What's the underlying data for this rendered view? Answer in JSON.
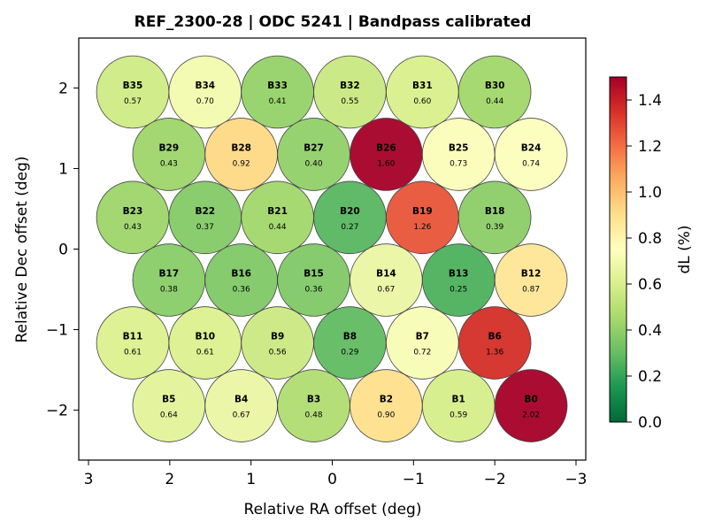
{
  "chart_data": {
    "type": "scatter",
    "subtype": "beam-footprint",
    "title": "REF_2300-28  |  ODC 5241  |  Bandpass calibrated",
    "xlabel": "Relative RA offset (deg)",
    "ylabel": "Relative Dec offset (deg)",
    "xlim": [
      3.12,
      -3.12
    ],
    "ylim": [
      -2.62,
      2.62
    ],
    "x_inverted": true,
    "xticks": [
      3,
      2,
      1,
      0,
      -1,
      -2,
      -3
    ],
    "xtick_labels": [
      "3",
      "2",
      "1",
      "0",
      "−1",
      "−2",
      "−3"
    ],
    "yticks": [
      2,
      1,
      0,
      -1,
      -2
    ],
    "ytick_labels": [
      "2",
      "1",
      "0",
      "−1",
      "−2"
    ],
    "beam_radius_deg": 0.445,
    "colorbar": {
      "label": "dL  (%)",
      "colormap": "RdYlGn_r",
      "vmin": 0.0,
      "vmax": 1.5,
      "ticks": [
        0.0,
        0.2,
        0.4,
        0.6,
        0.8,
        1.0,
        1.2,
        1.4
      ],
      "tick_labels": [
        "0.0",
        "0.2",
        "0.4",
        "0.6",
        "0.8",
        "1.0",
        "1.2",
        "1.4"
      ]
    },
    "beams": [
      {
        "name": "B35",
        "value": "0.57",
        "ra": 2.456,
        "dec": 1.95
      },
      {
        "name": "B34",
        "value": "0.70",
        "ra": 1.565,
        "dec": 1.95
      },
      {
        "name": "B33",
        "value": "0.41",
        "ra": 0.674,
        "dec": 1.95
      },
      {
        "name": "B32",
        "value": "0.55",
        "ra": -0.217,
        "dec": 1.95
      },
      {
        "name": "B31",
        "value": "0.60",
        "ra": -1.109,
        "dec": 1.95
      },
      {
        "name": "B30",
        "value": "0.44",
        "ra": -2.0,
        "dec": 1.95
      },
      {
        "name": "B29",
        "value": "0.43",
        "ra": 2.011,
        "dec": 1.176
      },
      {
        "name": "B28",
        "value": "0.92",
        "ra": 1.12,
        "dec": 1.176
      },
      {
        "name": "B27",
        "value": "0.40",
        "ra": 0.228,
        "dec": 1.176
      },
      {
        "name": "B26",
        "value": "1.60",
        "ra": -0.663,
        "dec": 1.176
      },
      {
        "name": "B25",
        "value": "0.73",
        "ra": -1.554,
        "dec": 1.176
      },
      {
        "name": "B24",
        "value": "0.74",
        "ra": -2.446,
        "dec": 1.176
      },
      {
        "name": "B23",
        "value": "0.43",
        "ra": 2.456,
        "dec": 0.392
      },
      {
        "name": "B22",
        "value": "0.37",
        "ra": 1.565,
        "dec": 0.392
      },
      {
        "name": "B21",
        "value": "0.44",
        "ra": 0.674,
        "dec": 0.392
      },
      {
        "name": "B20",
        "value": "0.27",
        "ra": -0.217,
        "dec": 0.392
      },
      {
        "name": "B19",
        "value": "1.26",
        "ra": -1.109,
        "dec": 0.392
      },
      {
        "name": "B18",
        "value": "0.39",
        "ra": -2.0,
        "dec": 0.392
      },
      {
        "name": "B17",
        "value": "0.38",
        "ra": 2.011,
        "dec": -0.385
      },
      {
        "name": "B16",
        "value": "0.36",
        "ra": 1.12,
        "dec": -0.385
      },
      {
        "name": "B15",
        "value": "0.36",
        "ra": 0.228,
        "dec": -0.385
      },
      {
        "name": "B14",
        "value": "0.67",
        "ra": -0.663,
        "dec": -0.385
      },
      {
        "name": "B13",
        "value": "0.25",
        "ra": -1.554,
        "dec": -0.385
      },
      {
        "name": "B12",
        "value": "0.87",
        "ra": -2.446,
        "dec": -0.385
      },
      {
        "name": "B11",
        "value": "0.61",
        "ra": 2.456,
        "dec": -1.165
      },
      {
        "name": "B10",
        "value": "0.61",
        "ra": 1.565,
        "dec": -1.165
      },
      {
        "name": "B9",
        "value": "0.56",
        "ra": 0.674,
        "dec": -1.165
      },
      {
        "name": "B8",
        "value": "0.29",
        "ra": -0.217,
        "dec": -1.165
      },
      {
        "name": "B7",
        "value": "0.72",
        "ra": -1.109,
        "dec": -1.165
      },
      {
        "name": "B6",
        "value": "1.36",
        "ra": -2.0,
        "dec": -1.165
      },
      {
        "name": "B5",
        "value": "0.64",
        "ra": 2.011,
        "dec": -1.945
      },
      {
        "name": "B4",
        "value": "0.67",
        "ra": 1.12,
        "dec": -1.945
      },
      {
        "name": "B3",
        "value": "0.48",
        "ra": 0.228,
        "dec": -1.945
      },
      {
        "name": "B2",
        "value": "0.90",
        "ra": -0.663,
        "dec": -1.945
      },
      {
        "name": "B1",
        "value": "0.59",
        "ra": -1.554,
        "dec": -1.945
      },
      {
        "name": "B0",
        "value": "2.02",
        "ra": -2.446,
        "dec": -1.945
      }
    ]
  }
}
